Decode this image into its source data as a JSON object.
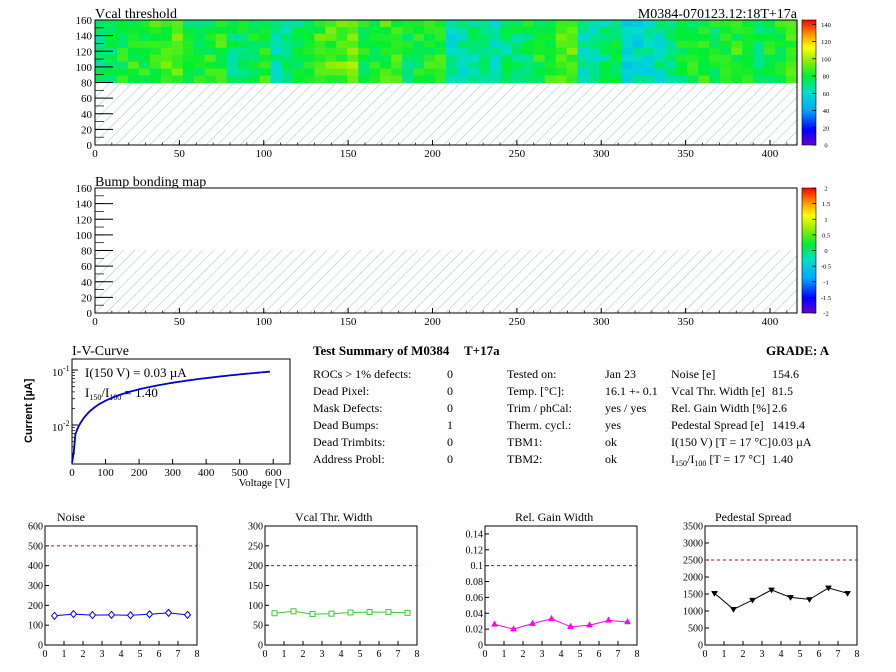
{
  "header": {
    "panel1_title": "Vcal threshold",
    "module_id": "M0384-070123.12:18T+17a",
    "panel2_title": "Bump bonding map"
  },
  "colors": {
    "hatch": "#9ec6cc",
    "curve_blue": "#0000cc",
    "noise_blue": "#0000ff",
    "vcal_green": "#33cc33",
    "gain_magenta": "#ff00ff",
    "ped_black": "#000000",
    "limit_red": "#cc0000"
  },
  "maps": [
    {
      "name": "vcal-threshold",
      "x_ticks": [
        "0",
        "50",
        "100",
        "150",
        "200",
        "250",
        "300",
        "350",
        "400"
      ],
      "y_ticks": [
        "0",
        "20",
        "40",
        "60",
        "80",
        "100",
        "120",
        "140",
        "160"
      ],
      "xlim": [
        0,
        416
      ],
      "ylim": [
        0,
        160
      ],
      "palette_ticks": [
        "0",
        "20",
        "40",
        "60",
        "80",
        "100",
        "120",
        "140"
      ],
      "palette_range": [
        0,
        145
      ],
      "filled_rows": [
        80,
        160
      ],
      "roc_means": [
        78,
        86,
        80,
        78,
        72,
        90,
        84,
        80,
        68,
        72,
        86,
        70,
        62,
        78,
        82,
        80
      ]
    },
    {
      "name": "bump-bonding",
      "x_ticks": [
        "0",
        "50",
        "100",
        "150",
        "200",
        "250",
        "300",
        "350",
        "400"
      ],
      "y_ticks": [
        "0",
        "20",
        "40",
        "60",
        "80",
        "100",
        "120",
        "140",
        "160"
      ],
      "xlim": [
        0,
        416
      ],
      "ylim": [
        0,
        160
      ],
      "palette_ticks": [
        "-2",
        "-1.5",
        "-1",
        "-0.5",
        "0",
        "0.5",
        "1",
        "1.5",
        "2"
      ],
      "palette_range": [
        -2,
        2
      ]
    }
  ],
  "iv": {
    "title": "I-V-Curve",
    "i150": "I(150 V) = 0.03 µA",
    "ratio_prefix": "I",
    "ratio_sub1": "150",
    "ratio_mid": "/I",
    "ratio_sub2": "100",
    "ratio_value": " =  1.40",
    "ylabel": "Current [µA]",
    "xlabel": "Voltage [V]",
    "y_tick_base": "10",
    "y_tick_exp_top": "-1",
    "y_tick_exp_bottom": "-2",
    "x_ticks": [
      "0",
      "100",
      "200",
      "300",
      "400",
      "500",
      "600"
    ]
  },
  "summary": {
    "title": "Test Summary of M0384",
    "temp_tag": "T+17a",
    "grade": "GRADE:  A",
    "col1": [
      {
        "label": "ROCs > 1% defects:",
        "value": "0"
      },
      {
        "label": "Dead Pixel:",
        "value": "0"
      },
      {
        "label": "Mask Defects:",
        "value": "0"
      },
      {
        "label": "Dead Bumps:",
        "value": "1"
      },
      {
        "label": "Dead Trimbits:",
        "value": "0"
      },
      {
        "label": "Address Probl:",
        "value": "0"
      }
    ],
    "col2": [
      {
        "label": "Tested on:",
        "value": "Jan 23"
      },
      {
        "label": "Temp. [°C]:",
        "value": "16.1 +- 0.1"
      },
      {
        "label": "Trim / phCal:",
        "value": "yes / yes"
      },
      {
        "label": "Therm. cycl.:",
        "value": "yes"
      },
      {
        "label": "TBM1:",
        "value": "ok"
      },
      {
        "label": "TBM2:",
        "value": "ok"
      }
    ],
    "col3": [
      {
        "label": "Noise [e]",
        "value": "154.6"
      },
      {
        "label": "Vcal Thr. Width [e]",
        "value": "81.5"
      },
      {
        "label": "Rel. Gain Width [%]",
        "value": "2.6"
      },
      {
        "label": "Pedestal Spread [e]",
        "value": "1419.4"
      },
      {
        "label": "I(150 V) [T = 17 °C]",
        "value": "0.03 µA"
      },
      {
        "label_prefix": "I",
        "label_sub1": "150",
        "label_mid": "/I",
        "label_sub2": "100",
        "label_rest": "  [T = 17 °C]",
        "value": "1.40"
      }
    ]
  },
  "chart_data": [
    {
      "type": "line",
      "title": "Noise",
      "x_ticks": [
        "0",
        "1",
        "2",
        "3",
        "4",
        "5",
        "6",
        "7",
        "8"
      ],
      "y_ticks": [
        "0",
        "100",
        "200",
        "300",
        "400",
        "500",
        "600"
      ],
      "xlim": [
        0,
        8
      ],
      "ylim": [
        0,
        600
      ],
      "limit": 500,
      "x": [
        0.5,
        1.5,
        2.5,
        3.5,
        4.5,
        5.5,
        6.5,
        7.5
      ],
      "values": [
        147,
        156,
        151,
        152,
        150,
        155,
        162,
        152
      ]
    },
    {
      "type": "line",
      "title": "Vcal Thr. Width",
      "x_ticks": [
        "0",
        "1",
        "2",
        "3",
        "4",
        "5",
        "6",
        "7",
        "8"
      ],
      "y_ticks": [
        "0",
        "50",
        "100",
        "150",
        "200",
        "250",
        "300"
      ],
      "xlim": [
        0,
        8
      ],
      "ylim": [
        0,
        300
      ],
      "limit": 200,
      "x": [
        0.5,
        1.5,
        2.5,
        3.5,
        4.5,
        5.5,
        6.5,
        7.5
      ],
      "values": [
        80,
        85,
        78,
        79,
        82,
        83,
        83,
        81
      ]
    },
    {
      "type": "line",
      "title": "Rel. Gain Width",
      "x_ticks": [
        "0",
        "1",
        "2",
        "3",
        "4",
        "5",
        "6",
        "7",
        "8"
      ],
      "y_ticks": [
        "0",
        "0.02",
        "0.04",
        "0.06",
        "0.08",
        "0.1",
        "0.12",
        "0.14"
      ],
      "xlim": [
        0,
        8
      ],
      "ylim": [
        0,
        0.15
      ],
      "limit": 0.1,
      "x": [
        0.5,
        1.5,
        2.5,
        3.5,
        4.5,
        5.5,
        6.5,
        7.5
      ],
      "values": [
        0.026,
        0.02,
        0.027,
        0.033,
        0.023,
        0.025,
        0.031,
        0.029
      ]
    },
    {
      "type": "line",
      "title": "Pedestal Spread",
      "x_ticks": [
        "0",
        "1",
        "2",
        "3",
        "4",
        "5",
        "6",
        "7",
        "8"
      ],
      "y_ticks": [
        "0",
        "500",
        "1000",
        "1500",
        "2000",
        "2500",
        "3000",
        "3500"
      ],
      "xlim": [
        0,
        8
      ],
      "ylim": [
        0,
        3500
      ],
      "limit": 2500,
      "x": [
        0.5,
        1.5,
        2.5,
        3.5,
        4.5,
        5.5,
        6.5,
        7.5
      ],
      "values": [
        1520,
        1050,
        1320,
        1620,
        1400,
        1340,
        1680,
        1520
      ]
    }
  ]
}
